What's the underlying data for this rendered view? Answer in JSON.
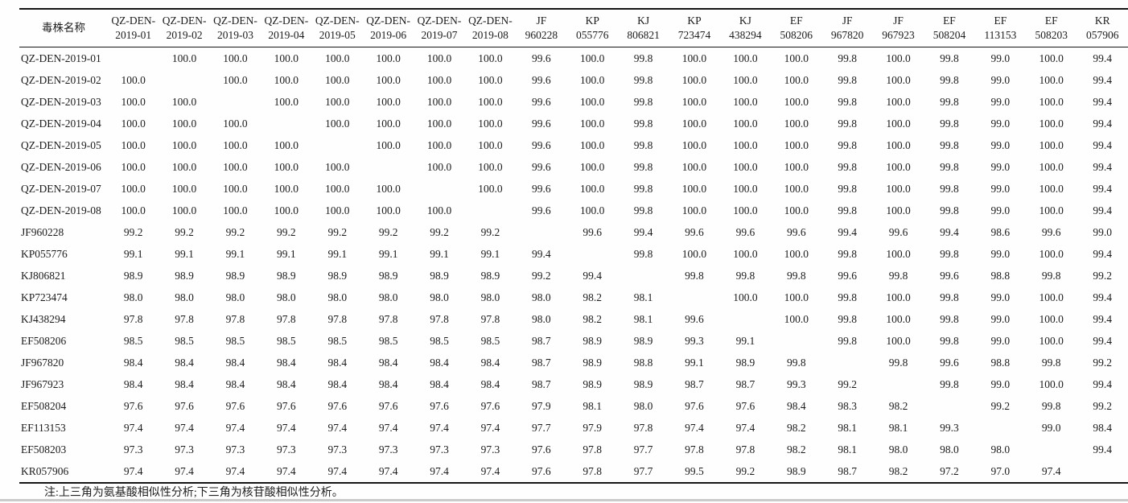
{
  "page": {
    "note": "注:上三角为氨基酸相似性分析;下三角为核苷酸相似性分析。"
  },
  "colors": {
    "text": "#1c1c1c",
    "rule": "#151515",
    "background": "#fefefe",
    "bottom_band": "#cbcbcb"
  },
  "table": {
    "corner_header": "毒株名称",
    "column_headers": [
      [
        "QZ-DEN-",
        "2019-01"
      ],
      [
        "QZ-DEN-",
        "2019-02"
      ],
      [
        "QZ-DEN-",
        "2019-03"
      ],
      [
        "QZ-DEN-",
        "2019-04"
      ],
      [
        "QZ-DEN-",
        "2019-05"
      ],
      [
        "QZ-DEN-",
        "2019-06"
      ],
      [
        "QZ-DEN-",
        "2019-07"
      ],
      [
        "QZ-DEN-",
        "2019-08"
      ],
      [
        "JF",
        "960228"
      ],
      [
        "KP",
        "055776"
      ],
      [
        "KJ",
        "806821"
      ],
      [
        "KP",
        "723474"
      ],
      [
        "KJ",
        "438294"
      ],
      [
        "EF",
        "508206"
      ],
      [
        "JF",
        "967820"
      ],
      [
        "JF",
        "967923"
      ],
      [
        "EF",
        "508204"
      ],
      [
        "EF",
        "113153"
      ],
      [
        "EF",
        "508203"
      ],
      [
        "KR",
        "057906"
      ]
    ],
    "rows": [
      {
        "label": "QZ-DEN-2019-01",
        "values": [
          "",
          "100.0",
          "100.0",
          "100.0",
          "100.0",
          "100.0",
          "100.0",
          "100.0",
          "99.6",
          "100.0",
          "99.8",
          "100.0",
          "100.0",
          "100.0",
          "99.8",
          "100.0",
          "99.8",
          "99.0",
          "100.0",
          "99.4"
        ]
      },
      {
        "label": "QZ-DEN-2019-02",
        "values": [
          "100.0",
          "",
          "100.0",
          "100.0",
          "100.0",
          "100.0",
          "100.0",
          "100.0",
          "99.6",
          "100.0",
          "99.8",
          "100.0",
          "100.0",
          "100.0",
          "99.8",
          "100.0",
          "99.8",
          "99.0",
          "100.0",
          "99.4"
        ]
      },
      {
        "label": "QZ-DEN-2019-03",
        "values": [
          "100.0",
          "100.0",
          "",
          "100.0",
          "100.0",
          "100.0",
          "100.0",
          "100.0",
          "99.6",
          "100.0",
          "99.8",
          "100.0",
          "100.0",
          "100.0",
          "99.8",
          "100.0",
          "99.8",
          "99.0",
          "100.0",
          "99.4"
        ]
      },
      {
        "label": "QZ-DEN-2019-04",
        "values": [
          "100.0",
          "100.0",
          "100.0",
          "",
          "100.0",
          "100.0",
          "100.0",
          "100.0",
          "99.6",
          "100.0",
          "99.8",
          "100.0",
          "100.0",
          "100.0",
          "99.8",
          "100.0",
          "99.8",
          "99.0",
          "100.0",
          "99.4"
        ]
      },
      {
        "label": "QZ-DEN-2019-05",
        "values": [
          "100.0",
          "100.0",
          "100.0",
          "100.0",
          "",
          "100.0",
          "100.0",
          "100.0",
          "99.6",
          "100.0",
          "99.8",
          "100.0",
          "100.0",
          "100.0",
          "99.8",
          "100.0",
          "99.8",
          "99.0",
          "100.0",
          "99.4"
        ]
      },
      {
        "label": "QZ-DEN-2019-06",
        "values": [
          "100.0",
          "100.0",
          "100.0",
          "100.0",
          "100.0",
          "",
          "100.0",
          "100.0",
          "99.6",
          "100.0",
          "99.8",
          "100.0",
          "100.0",
          "100.0",
          "99.8",
          "100.0",
          "99.8",
          "99.0",
          "100.0",
          "99.4"
        ]
      },
      {
        "label": "QZ-DEN-2019-07",
        "values": [
          "100.0",
          "100.0",
          "100.0",
          "100.0",
          "100.0",
          "100.0",
          "",
          "100.0",
          "99.6",
          "100.0",
          "99.8",
          "100.0",
          "100.0",
          "100.0",
          "99.8",
          "100.0",
          "99.8",
          "99.0",
          "100.0",
          "99.4"
        ]
      },
      {
        "label": "QZ-DEN-2019-08",
        "values": [
          "100.0",
          "100.0",
          "100.0",
          "100.0",
          "100.0",
          "100.0",
          "100.0",
          "",
          "99.6",
          "100.0",
          "99.8",
          "100.0",
          "100.0",
          "100.0",
          "99.8",
          "100.0",
          "99.8",
          "99.0",
          "100.0",
          "99.4"
        ]
      },
      {
        "label": "JF960228",
        "values": [
          "99.2",
          "99.2",
          "99.2",
          "99.2",
          "99.2",
          "99.2",
          "99.2",
          "99.2",
          "",
          "99.6",
          "99.4",
          "99.6",
          "99.6",
          "99.6",
          "99.4",
          "99.6",
          "99.4",
          "98.6",
          "99.6",
          "99.0"
        ]
      },
      {
        "label": "KP055776",
        "values": [
          "99.1",
          "99.1",
          "99.1",
          "99.1",
          "99.1",
          "99.1",
          "99.1",
          "99.1",
          "99.4",
          "",
          "99.8",
          "100.0",
          "100.0",
          "100.0",
          "99.8",
          "100.0",
          "99.8",
          "99.0",
          "100.0",
          "99.4"
        ]
      },
      {
        "label": "KJ806821",
        "values": [
          "98.9",
          "98.9",
          "98.9",
          "98.9",
          "98.9",
          "98.9",
          "98.9",
          "98.9",
          "99.2",
          "99.4",
          "",
          "99.8",
          "99.8",
          "99.8",
          "99.6",
          "99.8",
          "99.6",
          "98.8",
          "99.8",
          "99.2"
        ]
      },
      {
        "label": "KP723474",
        "values": [
          "98.0",
          "98.0",
          "98.0",
          "98.0",
          "98.0",
          "98.0",
          "98.0",
          "98.0",
          "98.0",
          "98.2",
          "98.1",
          "",
          "100.0",
          "100.0",
          "99.8",
          "100.0",
          "99.8",
          "99.0",
          "100.0",
          "99.4"
        ]
      },
      {
        "label": "KJ438294",
        "values": [
          "97.8",
          "97.8",
          "97.8",
          "97.8",
          "97.8",
          "97.8",
          "97.8",
          "97.8",
          "98.0",
          "98.2",
          "98.1",
          "99.6",
          "",
          "100.0",
          "99.8",
          "100.0",
          "99.8",
          "99.0",
          "100.0",
          "99.4"
        ]
      },
      {
        "label": "EF508206",
        "values": [
          "98.5",
          "98.5",
          "98.5",
          "98.5",
          "98.5",
          "98.5",
          "98.5",
          "98.5",
          "98.7",
          "98.9",
          "98.9",
          "99.3",
          "99.1",
          "",
          "99.8",
          "100.0",
          "99.8",
          "99.0",
          "100.0",
          "99.4"
        ]
      },
      {
        "label": "JF967820",
        "values": [
          "98.4",
          "98.4",
          "98.4",
          "98.4",
          "98.4",
          "98.4",
          "98.4",
          "98.4",
          "98.7",
          "98.9",
          "98.8",
          "99.1",
          "98.9",
          "99.8",
          "",
          "99.8",
          "99.6",
          "98.8",
          "99.8",
          "99.2"
        ]
      },
      {
        "label": "JF967923",
        "values": [
          "98.4",
          "98.4",
          "98.4",
          "98.4",
          "98.4",
          "98.4",
          "98.4",
          "98.4",
          "98.7",
          "98.9",
          "98.9",
          "98.7",
          "98.7",
          "99.3",
          "99.2",
          "",
          "99.8",
          "99.0",
          "100.0",
          "99.4"
        ]
      },
      {
        "label": "EF508204",
        "values": [
          "97.6",
          "97.6",
          "97.6",
          "97.6",
          "97.6",
          "97.6",
          "97.6",
          "97.6",
          "97.9",
          "98.1",
          "98.0",
          "97.6",
          "97.6",
          "98.4",
          "98.3",
          "98.2",
          "",
          "99.2",
          "99.8",
          "99.2"
        ]
      },
      {
        "label": "EF113153",
        "values": [
          "97.4",
          "97.4",
          "97.4",
          "97.4",
          "97.4",
          "97.4",
          "97.4",
          "97.4",
          "97.7",
          "97.9",
          "97.8",
          "97.4",
          "97.4",
          "98.2",
          "98.1",
          "98.1",
          "99.3",
          "",
          "99.0",
          "98.4"
        ]
      },
      {
        "label": "EF508203",
        "values": [
          "97.3",
          "97.3",
          "97.3",
          "97.3",
          "97.3",
          "97.3",
          "97.3",
          "97.3",
          "97.6",
          "97.8",
          "97.7",
          "97.8",
          "97.8",
          "98.2",
          "98.1",
          "98.0",
          "98.0",
          "98.0",
          "",
          "99.4"
        ]
      },
      {
        "label": "KR057906",
        "values": [
          "97.4",
          "97.4",
          "97.4",
          "97.4",
          "97.4",
          "97.4",
          "97.4",
          "97.4",
          "97.6",
          "97.8",
          "97.7",
          "99.5",
          "99.2",
          "98.9",
          "98.7",
          "98.2",
          "97.2",
          "97.0",
          "97.4",
          ""
        ]
      }
    ]
  }
}
